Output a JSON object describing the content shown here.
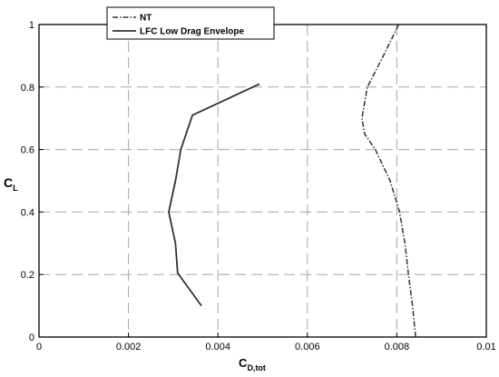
{
  "chart_data": {
    "type": "line",
    "xlabel_main": "C",
    "xlabel_sub": "D,tot",
    "ylabel_main": "C",
    "ylabel_sub": "L",
    "xlim": [
      0,
      0.01
    ],
    "ylim": [
      0,
      1
    ],
    "x_ticks": [
      0,
      0.002,
      0.004,
      0.006,
      0.008,
      0.01
    ],
    "x_tick_labels": [
      "0",
      "0.002",
      "0.004",
      "0.006",
      "0.008",
      "0.01"
    ],
    "y_ticks": [
      0,
      0.2,
      0.4,
      0.6,
      0.8,
      1
    ],
    "y_tick_labels": [
      "0",
      "0.2",
      "0.4",
      "0.6",
      "0.8",
      "1"
    ],
    "grid": true,
    "legend_position": "top-left",
    "series": [
      {
        "name": "NT",
        "line_style": "dash-dot",
        "color": "#333333",
        "points": [
          [
            0.00842,
            0.0
          ],
          [
            0.00835,
            0.1
          ],
          [
            0.00826,
            0.2
          ],
          [
            0.00818,
            0.3
          ],
          [
            0.00806,
            0.4
          ],
          [
            0.00785,
            0.5
          ],
          [
            0.00752,
            0.6
          ],
          [
            0.00728,
            0.65
          ],
          [
            0.00722,
            0.7
          ],
          [
            0.00734,
            0.8
          ],
          [
            0.0077,
            0.9
          ],
          [
            0.00804,
            1.0
          ]
        ]
      },
      {
        "name": "LFC Low Drag Envelope",
        "line_style": "solid",
        "color": "#333333",
        "points": [
          [
            0.00363,
            0.1
          ],
          [
            0.0031,
            0.205
          ],
          [
            0.00305,
            0.3
          ],
          [
            0.0029,
            0.4
          ],
          [
            0.00305,
            0.5
          ],
          [
            0.00317,
            0.6
          ],
          [
            0.00343,
            0.71
          ],
          [
            0.00493,
            0.81
          ]
        ]
      }
    ]
  }
}
